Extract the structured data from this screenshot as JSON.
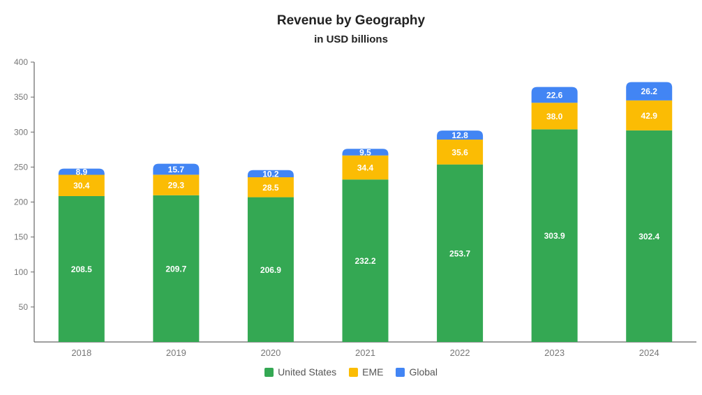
{
  "colors": {
    "united_states": "#34a853",
    "eme": "#fbbc04",
    "global": "#4285f4",
    "axis": "#555555",
    "tick_text": "#777777"
  },
  "chart_data": {
    "type": "bar",
    "stacked": true,
    "title": "Revenue by Geography",
    "subtitle": "in USD billions",
    "xlabel": "",
    "ylabel": "",
    "ylim": [
      0,
      400
    ],
    "yticks": [
      50,
      100,
      150,
      200,
      250,
      300,
      350,
      400
    ],
    "categories": [
      "2018",
      "2019",
      "2020",
      "2021",
      "2022",
      "2023",
      "2024"
    ],
    "series": [
      {
        "name": "United States",
        "color": "#34a853",
        "values": [
          208.5,
          209.7,
          206.9,
          232.2,
          253.7,
          303.9,
          302.4
        ]
      },
      {
        "name": "EME",
        "color": "#fbbc04",
        "values": [
          30.4,
          29.3,
          28.5,
          34.4,
          35.6,
          38.0,
          42.9
        ]
      },
      {
        "name": "Global",
        "color": "#4285f4",
        "values": [
          8.9,
          15.7,
          10.2,
          9.5,
          12.8,
          22.6,
          26.2
        ]
      }
    ],
    "value_labels": [
      [
        "208.5",
        "209.7",
        "206.9",
        "232.2",
        "253.7",
        "303.9",
        "302.4"
      ],
      [
        "30.4",
        "29.3",
        "28.5",
        "34.4",
        "35.6",
        "38.0",
        "42.9"
      ],
      [
        "8.9",
        "15.7",
        "10.2",
        "9.5",
        "12.8",
        "22.6",
        "26.2"
      ]
    ],
    "legend_position": "bottom",
    "grid": false
  }
}
